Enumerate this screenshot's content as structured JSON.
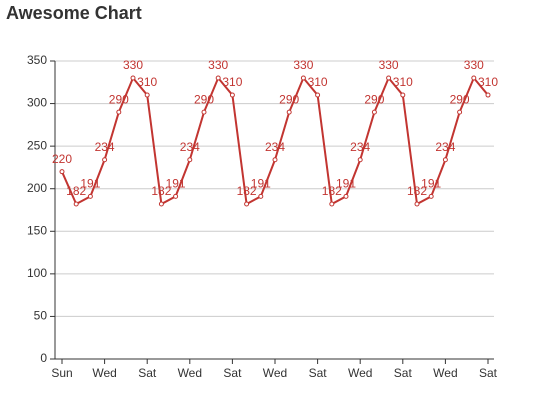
{
  "chart_data": {
    "type": "line",
    "title": "Awesome Chart",
    "categories": [
      "Sun",
      null,
      null,
      "Wed",
      null,
      null,
      "Sat",
      null,
      null,
      "Wed",
      null,
      null,
      "Sat",
      null,
      null,
      "Wed",
      null,
      null,
      "Sat",
      null,
      null,
      "Wed",
      null,
      null,
      "Sat",
      null,
      null,
      "Wed",
      null,
      null,
      "Sat"
    ],
    "series": [
      {
        "color": "#c23531",
        "values": [
          220,
          182,
          191,
          234,
          290,
          330,
          310,
          182,
          191,
          234,
          290,
          330,
          310,
          182,
          191,
          234,
          290,
          330,
          310,
          182,
          191,
          234,
          290,
          330,
          310,
          182,
          191,
          234,
          290,
          330,
          310
        ]
      }
    ],
    "ylim": [
      0,
      350
    ],
    "yticks": [
      0,
      50,
      100,
      150,
      200,
      250,
      300,
      350
    ],
    "grid": true
  }
}
